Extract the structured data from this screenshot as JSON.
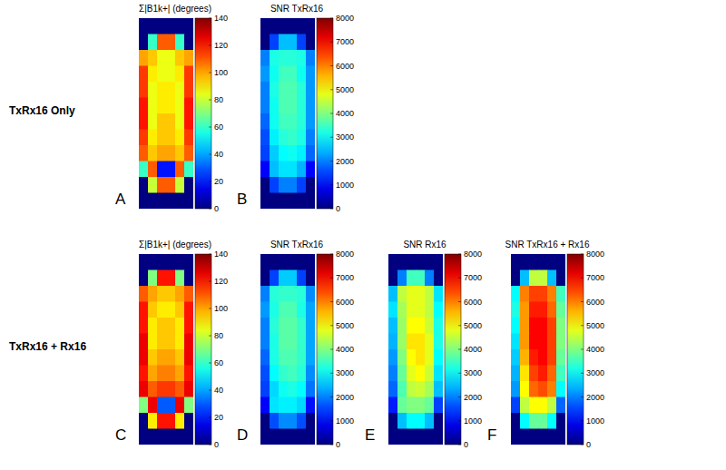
{
  "chart_data": [
    {
      "type": "heatmap",
      "panel": "A",
      "row_label": "TxRx16 Only",
      "title": "Σ|B1k+| (degrees)",
      "tick_labels": false,
      "cells": [
        [
          0,
          0,
          0,
          0,
          0,
          0
        ],
        [
          0,
          60,
          110,
          110,
          60,
          0
        ],
        [
          100,
          95,
          85,
          85,
          95,
          100
        ],
        [
          115,
          90,
          85,
          85,
          90,
          115
        ],
        [
          115,
          85,
          90,
          90,
          85,
          115
        ],
        [
          120,
          85,
          90,
          90,
          85,
          120
        ],
        [
          120,
          85,
          95,
          95,
          85,
          120
        ],
        [
          115,
          90,
          95,
          95,
          90,
          115
        ],
        [
          110,
          95,
          100,
          100,
          95,
          110
        ],
        [
          60,
          110,
          20,
          20,
          110,
          60
        ],
        [
          0,
          80,
          110,
          110,
          80,
          0
        ],
        [
          0,
          0,
          0,
          0,
          0,
          0
        ]
      ],
      "colorbar": {
        "range": [
          0,
          140
        ],
        "ticks": [
          0,
          20,
          40,
          60,
          80,
          100,
          120,
          140
        ]
      }
    },
    {
      "type": "heatmap",
      "panel": "B",
      "title": "SNR TxRx16",
      "tick_labels": false,
      "cells": [
        [
          0,
          0,
          0,
          0,
          0,
          0
        ],
        [
          0,
          1500,
          2500,
          2500,
          1500,
          0
        ],
        [
          2000,
          3200,
          3300,
          3300,
          3200,
          2000
        ],
        [
          2200,
          3100,
          3500,
          3500,
          3100,
          2200
        ],
        [
          2000,
          3200,
          3600,
          3600,
          3300,
          2200
        ],
        [
          2000,
          3100,
          3600,
          3600,
          3300,
          2200
        ],
        [
          1800,
          3100,
          3500,
          3500,
          3300,
          2200
        ],
        [
          1600,
          2900,
          3300,
          3400,
          3200,
          2000
        ],
        [
          1500,
          2600,
          3000,
          3100,
          2900,
          1800
        ],
        [
          1000,
          2500,
          2800,
          2800,
          2400,
          1000
        ],
        [
          0,
          1500,
          2000,
          2000,
          1500,
          0
        ],
        [
          0,
          0,
          0,
          0,
          0,
          0
        ]
      ],
      "colorbar": {
        "range": [
          0,
          8000
        ],
        "ticks": [
          0,
          1000,
          2000,
          3000,
          4000,
          5000,
          6000,
          7000,
          8000
        ]
      }
    },
    {
      "type": "heatmap",
      "panel": "C",
      "row_label": "TxRx16 + Rx16",
      "title": "Σ|B1k+| (degrees)",
      "tick_labels": false,
      "cells": [
        [
          0,
          0,
          0,
          0,
          0,
          0
        ],
        [
          0,
          70,
          120,
          120,
          70,
          0
        ],
        [
          110,
          100,
          95,
          95,
          100,
          110
        ],
        [
          120,
          95,
          90,
          90,
          95,
          120
        ],
        [
          120,
          90,
          95,
          95,
          90,
          120
        ],
        [
          125,
          90,
          95,
          95,
          90,
          125
        ],
        [
          125,
          95,
          100,
          100,
          95,
          125
        ],
        [
          120,
          100,
          105,
          105,
          100,
          120
        ],
        [
          125,
          110,
          115,
          115,
          110,
          125
        ],
        [
          70,
          125,
          30,
          30,
          125,
          70
        ],
        [
          0,
          90,
          120,
          120,
          90,
          0
        ],
        [
          0,
          0,
          0,
          0,
          0,
          0
        ]
      ],
      "colorbar": {
        "range": [
          0,
          140
        ],
        "ticks": [
          0,
          20,
          40,
          60,
          80,
          100,
          120,
          140
        ]
      }
    },
    {
      "type": "heatmap",
      "panel": "D",
      "title": "SNR TxRx16",
      "tick_labels": false,
      "cells": [
        [
          0,
          0,
          0,
          0,
          0,
          0
        ],
        [
          0,
          1500,
          2600,
          2600,
          1500,
          0
        ],
        [
          2000,
          3300,
          3400,
          3400,
          3300,
          2100
        ],
        [
          2200,
          3200,
          3600,
          3600,
          3200,
          2300
        ],
        [
          2000,
          3300,
          3700,
          3700,
          3400,
          2300
        ],
        [
          2000,
          3200,
          3700,
          3700,
          3400,
          2300
        ],
        [
          1800,
          3200,
          3600,
          3600,
          3400,
          2300
        ],
        [
          1600,
          3000,
          3400,
          3500,
          3300,
          2100
        ],
        [
          1500,
          2700,
          3100,
          3200,
          3000,
          1900
        ],
        [
          1000,
          2800,
          2900,
          2900,
          2700,
          1100
        ],
        [
          0,
          1600,
          2100,
          2100,
          1600,
          0
        ],
        [
          0,
          0,
          0,
          0,
          0,
          0
        ]
      ],
      "colorbar": {
        "range": [
          0,
          8000
        ],
        "ticks": [
          0,
          1000,
          2000,
          3000,
          4000,
          5000,
          6000,
          7000,
          8000
        ]
      }
    },
    {
      "type": "heatmap",
      "panel": "E",
      "title": "SNR Rx16",
      "tick_labels": false,
      "cells": [
        [
          0,
          0,
          0,
          0,
          0,
          0
        ],
        [
          0,
          2000,
          3500,
          3500,
          2000,
          0
        ],
        [
          2500,
          4500,
          4800,
          4800,
          4500,
          2800
        ],
        [
          2800,
          4300,
          4800,
          4800,
          4500,
          3000
        ],
        [
          2500,
          4200,
          5000,
          5000,
          4600,
          3200
        ],
        [
          2400,
          4200,
          5200,
          5200,
          4800,
          3200
        ],
        [
          2200,
          4000,
          5000,
          5200,
          4800,
          3000
        ],
        [
          2000,
          3800,
          4800,
          5000,
          4600,
          2800
        ],
        [
          1800,
          3600,
          4500,
          4600,
          4300,
          2500
        ],
        [
          1200,
          3800,
          4000,
          4000,
          3800,
          1500
        ],
        [
          0,
          2500,
          3000,
          3000,
          2500,
          0
        ],
        [
          0,
          0,
          0,
          0,
          0,
          0
        ]
      ],
      "colorbar": {
        "range": [
          0,
          8000
        ],
        "ticks": [
          0,
          1000,
          2000,
          3000,
          4000,
          5000,
          6000,
          7000,
          8000
        ]
      }
    },
    {
      "type": "heatmap",
      "panel": "F",
      "title": "SNR TxRx16 + Rx16",
      "tick_labels": false,
      "cells": [
        [
          0,
          0,
          0,
          0,
          0,
          0
        ],
        [
          0,
          2500,
          4500,
          4500,
          2500,
          0
        ],
        [
          3000,
          6000,
          6500,
          6500,
          6000,
          3500
        ],
        [
          3200,
          5800,
          6800,
          6800,
          6200,
          3800
        ],
        [
          3000,
          5800,
          7000,
          7000,
          6500,
          4000
        ],
        [
          2800,
          5800,
          7000,
          7000,
          6500,
          4000
        ],
        [
          2600,
          5600,
          6800,
          7000,
          6500,
          3800
        ],
        [
          2400,
          5200,
          6500,
          6800,
          6200,
          3500
        ],
        [
          2200,
          5000,
          6200,
          6400,
          6000,
          3000
        ],
        [
          1500,
          4500,
          5000,
          5000,
          4500,
          1800
        ],
        [
          0,
          3000,
          3800,
          3800,
          3000,
          0
        ],
        [
          0,
          0,
          0,
          0,
          0,
          0
        ]
      ],
      "colorbar": {
        "range": [
          0,
          8000
        ],
        "ticks": [
          0,
          1000,
          2000,
          3000,
          4000,
          5000,
          6000,
          7000,
          8000
        ]
      }
    }
  ]
}
